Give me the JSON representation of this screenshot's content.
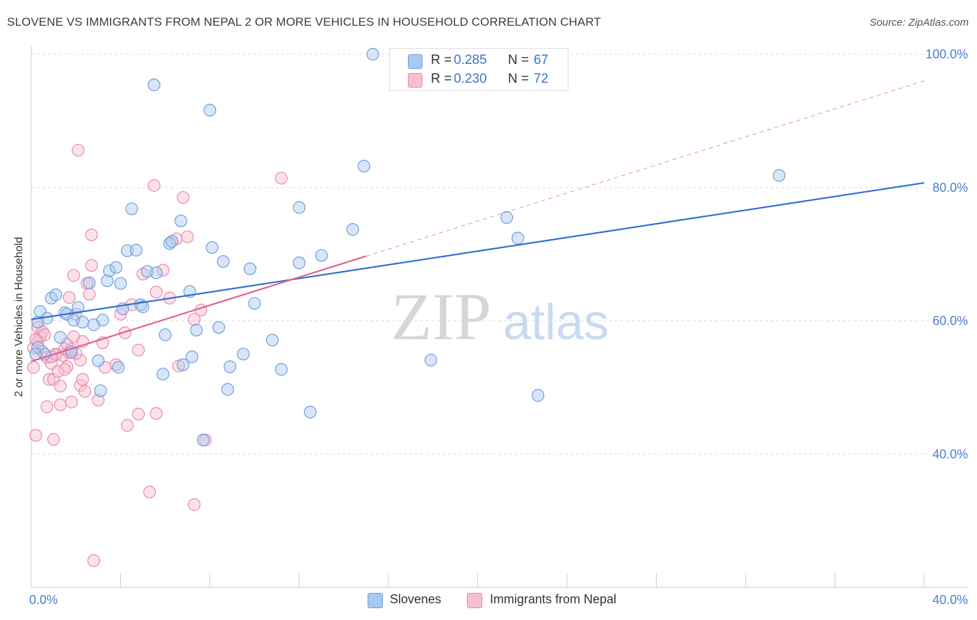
{
  "title": "SLOVENE VS IMMIGRANTS FROM NEPAL 2 OR MORE VEHICLES IN HOUSEHOLD CORRELATION CHART",
  "source": "Source: ZipAtlas.com",
  "watermark": {
    "zip": "ZIP",
    "atlas": "atlas"
  },
  "legend_top": [
    {
      "r_label": "R =",
      "r_value": "0.285",
      "n_label": "N =",
      "n_value": "67"
    },
    {
      "r_label": "R =",
      "r_value": "0.230",
      "n_label": "N =",
      "n_value": "72"
    }
  ],
  "legend_bottom": [
    "Slovenes",
    "Immigrants from Nepal"
  ],
  "colors": {
    "blue_fill": "#a9c8ef",
    "blue_stroke": "#6d9fdc",
    "blue_line": "#2f6fd0",
    "pink_fill": "#f6bfd0",
    "pink_stroke": "#e88aa8",
    "pink_line": "#e0628c",
    "grid": "#dddddd",
    "axis_text": "#4a7fd0"
  },
  "chart_data": {
    "type": "scatter",
    "xlabel": "",
    "ylabel": "2 or more Vehicles in Household",
    "xlim": [
      0,
      40
    ],
    "ylim": [
      20,
      100
    ],
    "x_tick_labels": [
      "0.0%",
      "40.0%"
    ],
    "y_ticks": [
      40,
      60,
      80,
      100
    ],
    "y_tick_labels": [
      "40.0%",
      "60.0%",
      "80.0%",
      "100.0%"
    ],
    "grid": true,
    "series": [
      {
        "name": "Slovenes",
        "r": 0.285,
        "n": 67,
        "trend": {
          "x": [
            0,
            40
          ],
          "y": [
            60.2,
            80.7
          ],
          "style": "solid"
        },
        "points": [
          [
            0.3,
            56.0
          ],
          [
            0.3,
            59.8
          ],
          [
            0.4,
            61.4
          ],
          [
            0.6,
            55.0
          ],
          [
            0.7,
            60.4
          ],
          [
            0.9,
            63.4
          ],
          [
            1.1,
            63.9
          ],
          [
            1.3,
            57.5
          ],
          [
            1.5,
            61.2
          ],
          [
            1.6,
            61.0
          ],
          [
            1.8,
            55.3
          ],
          [
            1.9,
            60.1
          ],
          [
            2.1,
            62.0
          ],
          [
            2.3,
            59.8
          ],
          [
            2.6,
            65.7
          ],
          [
            2.8,
            59.4
          ],
          [
            3.0,
            54.0
          ],
          [
            3.1,
            49.5
          ],
          [
            3.2,
            60.1
          ],
          [
            3.4,
            66.0
          ],
          [
            3.5,
            67.5
          ],
          [
            3.8,
            68.0
          ],
          [
            3.9,
            53.0
          ],
          [
            4.0,
            65.6
          ],
          [
            4.1,
            61.8
          ],
          [
            4.3,
            70.5
          ],
          [
            4.5,
            76.8
          ],
          [
            4.7,
            70.6
          ],
          [
            4.9,
            62.4
          ],
          [
            5.0,
            62.1
          ],
          [
            5.2,
            67.4
          ],
          [
            5.5,
            95.4
          ],
          [
            5.6,
            67.2
          ],
          [
            5.9,
            52.0
          ],
          [
            6.0,
            57.9
          ],
          [
            6.2,
            71.6
          ],
          [
            6.3,
            71.9
          ],
          [
            6.7,
            75.0
          ],
          [
            6.8,
            53.4
          ],
          [
            7.1,
            64.4
          ],
          [
            7.2,
            54.6
          ],
          [
            7.4,
            58.6
          ],
          [
            7.7,
            42.1
          ],
          [
            8.0,
            91.6
          ],
          [
            8.1,
            71.0
          ],
          [
            8.4,
            59.0
          ],
          [
            8.6,
            68.9
          ],
          [
            8.8,
            49.7
          ],
          [
            8.9,
            53.1
          ],
          [
            9.5,
            55.0
          ],
          [
            9.8,
            67.8
          ],
          [
            10.0,
            62.6
          ],
          [
            10.8,
            57.1
          ],
          [
            11.2,
            52.7
          ],
          [
            12.0,
            77.0
          ],
          [
            12.0,
            68.7
          ],
          [
            12.5,
            46.3
          ],
          [
            13.0,
            69.8
          ],
          [
            14.4,
            73.7
          ],
          [
            14.9,
            83.2
          ],
          [
            15.3,
            100.0
          ],
          [
            17.9,
            54.1
          ],
          [
            21.3,
            75.5
          ],
          [
            21.8,
            72.4
          ],
          [
            22.7,
            48.8
          ],
          [
            33.5,
            81.8
          ],
          [
            0.2,
            55.0
          ]
        ]
      },
      {
        "name": "Immigrants from Nepal",
        "r": 0.23,
        "n": 72,
        "trend": {
          "x": [
            0,
            15.0
          ],
          "y": [
            53.9,
            69.7
          ],
          "style": "solid"
        },
        "trend_extension": {
          "x": [
            15.0,
            40.0
          ],
          "y": [
            69.7,
            96.0
          ],
          "style": "dashed"
        },
        "points": [
          [
            0.1,
            53.0
          ],
          [
            0.1,
            55.9
          ],
          [
            0.2,
            42.8
          ],
          [
            0.3,
            56.9
          ],
          [
            0.3,
            59.0
          ],
          [
            0.4,
            57.7
          ],
          [
            0.5,
            58.4
          ],
          [
            0.5,
            55.4
          ],
          [
            0.6,
            57.9
          ],
          [
            0.7,
            54.5
          ],
          [
            0.7,
            47.1
          ],
          [
            0.8,
            51.2
          ],
          [
            0.9,
            53.6
          ],
          [
            1.0,
            42.2
          ],
          [
            1.0,
            51.2
          ],
          [
            1.1,
            55.0
          ],
          [
            1.2,
            52.4
          ],
          [
            1.3,
            47.4
          ],
          [
            1.3,
            50.2
          ],
          [
            1.4,
            54.8
          ],
          [
            1.5,
            55.8
          ],
          [
            1.6,
            56.5
          ],
          [
            1.6,
            53.1
          ],
          [
            1.7,
            55.2
          ],
          [
            1.7,
            63.5
          ],
          [
            1.8,
            47.8
          ],
          [
            1.9,
            57.6
          ],
          [
            1.9,
            66.8
          ],
          [
            2.0,
            61.0
          ],
          [
            2.1,
            85.6
          ],
          [
            2.2,
            54.1
          ],
          [
            2.2,
            50.3
          ],
          [
            2.3,
            51.2
          ],
          [
            2.3,
            56.9
          ],
          [
            2.4,
            49.4
          ],
          [
            2.5,
            65.6
          ],
          [
            2.6,
            64.0
          ],
          [
            2.7,
            68.3
          ],
          [
            2.7,
            72.9
          ],
          [
            2.8,
            24.0
          ],
          [
            3.0,
            48.1
          ],
          [
            3.2,
            56.7
          ],
          [
            3.3,
            53.0
          ],
          [
            3.8,
            53.4
          ],
          [
            4.0,
            61.0
          ],
          [
            4.2,
            58.2
          ],
          [
            4.3,
            44.3
          ],
          [
            4.5,
            62.4
          ],
          [
            4.8,
            55.6
          ],
          [
            4.8,
            46.0
          ],
          [
            5.0,
            67.0
          ],
          [
            5.3,
            34.3
          ],
          [
            5.5,
            80.3
          ],
          [
            5.6,
            46.1
          ],
          [
            5.6,
            64.3
          ],
          [
            5.9,
            67.6
          ],
          [
            6.2,
            63.4
          ],
          [
            6.5,
            72.3
          ],
          [
            6.6,
            53.2
          ],
          [
            6.8,
            78.5
          ],
          [
            7.0,
            72.6
          ],
          [
            7.3,
            32.4
          ],
          [
            7.3,
            60.2
          ],
          [
            7.6,
            61.6
          ],
          [
            7.8,
            42.1
          ],
          [
            11.2,
            81.4
          ],
          [
            0.2,
            57.2
          ],
          [
            1.1,
            54.9
          ],
          [
            1.5,
            52.7
          ],
          [
            2.0,
            55.1
          ],
          [
            0.9,
            54.6
          ],
          [
            1.8,
            55.7
          ]
        ]
      }
    ]
  }
}
